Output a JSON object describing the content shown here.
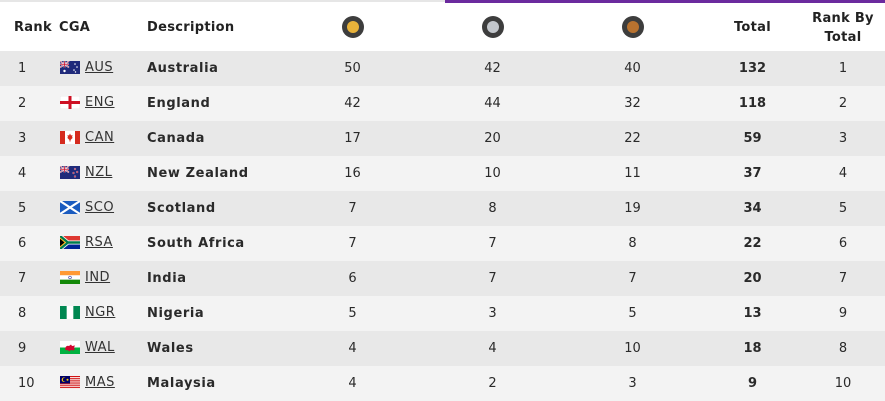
{
  "header": {
    "rank": "Rank",
    "cga": "CGA",
    "description": "Description",
    "gold_icon": "gold-medal-icon",
    "silver_icon": "silver-medal-icon",
    "bronze_icon": "bronze-medal-icon",
    "total": "Total",
    "rank_by_total_line1": "Rank By",
    "rank_by_total_line2": "Total"
  },
  "rows": [
    {
      "rank": "1",
      "flag": "australia-flag-icon",
      "code": "AUS",
      "description": "Australia",
      "gold": "50",
      "silver": "42",
      "bronze": "40",
      "total": "132",
      "rank_by_total": "1"
    },
    {
      "rank": "2",
      "flag": "england-flag-icon",
      "code": "ENG",
      "description": "England",
      "gold": "42",
      "silver": "44",
      "bronze": "32",
      "total": "118",
      "rank_by_total": "2"
    },
    {
      "rank": "3",
      "flag": "canada-flag-icon",
      "code": "CAN",
      "description": "Canada",
      "gold": "17",
      "silver": "20",
      "bronze": "22",
      "total": "59",
      "rank_by_total": "3"
    },
    {
      "rank": "4",
      "flag": "new-zealand-flag-icon",
      "code": "NZL",
      "description": "New Zealand",
      "gold": "16",
      "silver": "10",
      "bronze": "11",
      "total": "37",
      "rank_by_total": "4"
    },
    {
      "rank": "5",
      "flag": "scotland-flag-icon",
      "code": "SCO",
      "description": "Scotland",
      "gold": "7",
      "silver": "8",
      "bronze": "19",
      "total": "34",
      "rank_by_total": "5"
    },
    {
      "rank": "6",
      "flag": "south-africa-flag-icon",
      "code": "RSA",
      "description": "South Africa",
      "gold": "7",
      "silver": "7",
      "bronze": "8",
      "total": "22",
      "rank_by_total": "6"
    },
    {
      "rank": "7",
      "flag": "india-flag-icon",
      "code": "IND",
      "description": "India",
      "gold": "6",
      "silver": "7",
      "bronze": "7",
      "total": "20",
      "rank_by_total": "7"
    },
    {
      "rank": "8",
      "flag": "nigeria-flag-icon",
      "code": "NGR",
      "description": "Nigeria",
      "gold": "5",
      "silver": "3",
      "bronze": "5",
      "total": "13",
      "rank_by_total": "9"
    },
    {
      "rank": "9",
      "flag": "wales-flag-icon",
      "code": "WAL",
      "description": "Wales",
      "gold": "4",
      "silver": "4",
      "bronze": "10",
      "total": "18",
      "rank_by_total": "8"
    },
    {
      "rank": "10",
      "flag": "malaysia-flag-icon",
      "code": "MAS",
      "description": "Malaysia",
      "gold": "4",
      "silver": "2",
      "bronze": "3",
      "total": "9",
      "rank_by_total": "10"
    }
  ],
  "colors": {
    "accent_purple": "#6b2a9e",
    "row_dark": "#e8e8e8",
    "row_light": "#f3f3f3",
    "gold": "#e8b23a",
    "silver": "#c3c7cc",
    "bronze": "#b8722f"
  }
}
